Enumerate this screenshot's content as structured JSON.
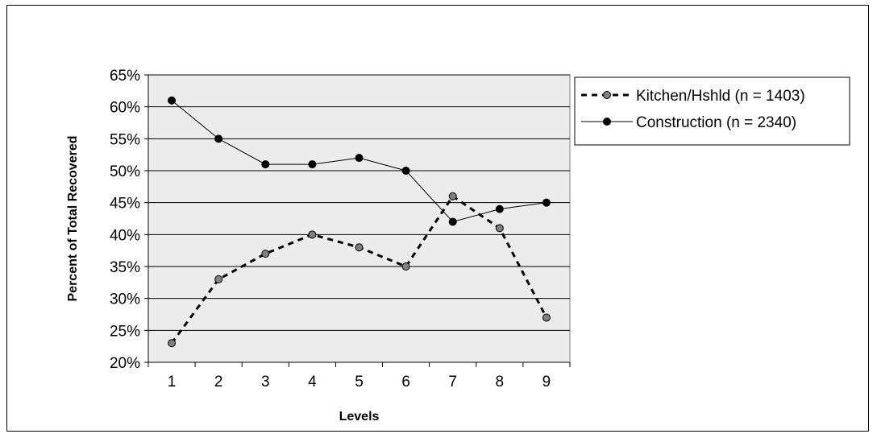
{
  "chart_data": {
    "type": "line",
    "title": "",
    "xlabel": "Levels",
    "ylabel": "Percent of Total Recovered",
    "x": [
      1,
      2,
      3,
      4,
      5,
      6,
      7,
      8,
      9
    ],
    "ylim": [
      20,
      65
    ],
    "yticks": [
      20,
      25,
      30,
      35,
      40,
      45,
      50,
      55,
      60,
      65
    ],
    "ytick_labels": [
      "20%",
      "25%",
      "30%",
      "35%",
      "40%",
      "45%",
      "50%",
      "55%",
      "60%",
      "65%"
    ],
    "grid": true,
    "legend_position": "right",
    "series": [
      {
        "name": "Kitchen/Hshld (n = 1403)",
        "values": [
          23,
          33,
          37,
          40,
          38,
          35,
          46,
          41,
          27
        ],
        "style": "dashed",
        "marker_color": "#808080",
        "line_color": "#000000"
      },
      {
        "name": "Construction (n = 2340)",
        "values": [
          61,
          55,
          51,
          51,
          52,
          50,
          42,
          44,
          45
        ],
        "style": "solid",
        "marker_color": "#000000",
        "line_color": "#000000"
      }
    ],
    "plot_background": "#ececec"
  }
}
